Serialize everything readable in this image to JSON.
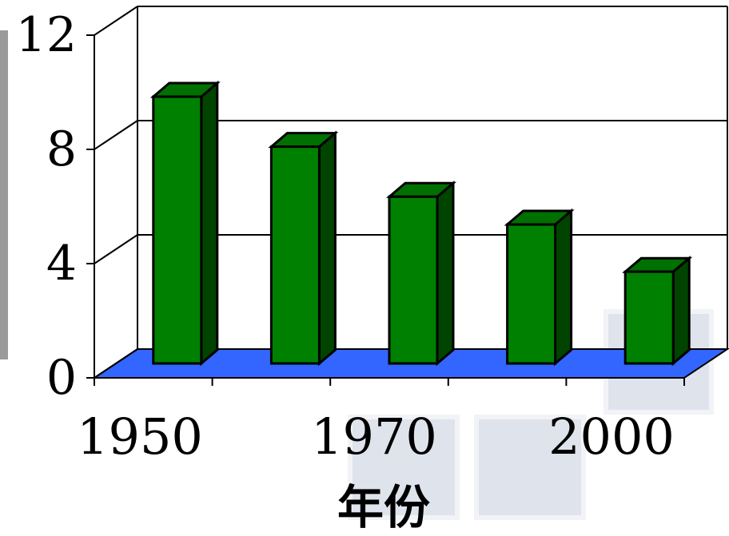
{
  "chart_data": {
    "type": "bar",
    "categories": [
      "1950",
      "",
      "1970",
      "",
      "2000"
    ],
    "values": [
      9.6,
      7.8,
      6.0,
      5.0,
      3.3
    ],
    "xlabel": "年份",
    "ylabel": "",
    "ylim": [
      0,
      12
    ],
    "yticks": [
      "0",
      "4",
      "8",
      "12"
    ],
    "grid": true,
    "three_d": true,
    "colors": {
      "bar_front": "#008000",
      "bar_side": "#004400",
      "bar_top": "#007000",
      "floor": "#3366ff",
      "grid": "#000000",
      "decor": "#dfe3ec"
    }
  }
}
